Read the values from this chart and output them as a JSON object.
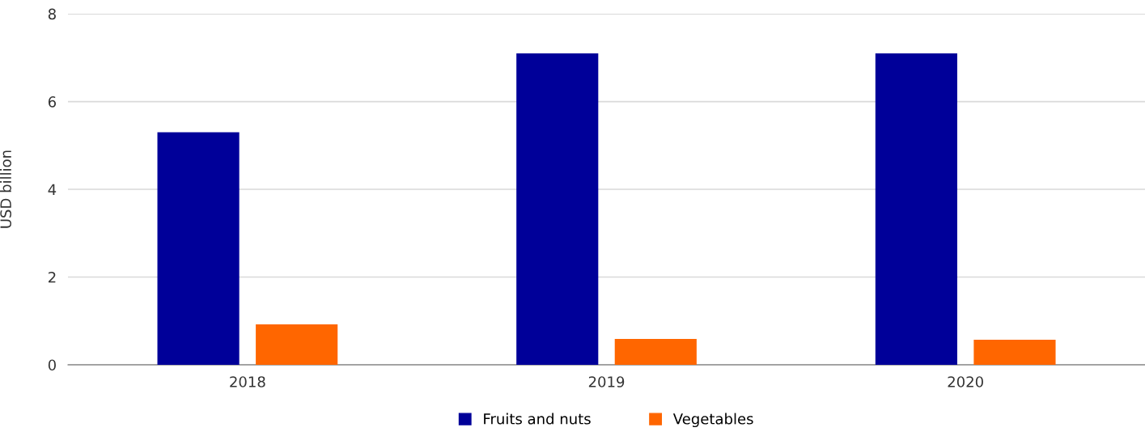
{
  "chart_data": {
    "type": "bar",
    "ylabel": "USD billion",
    "categories": [
      "2018",
      "2019",
      "2020"
    ],
    "series": [
      {
        "name": "Fruits and nuts",
        "color": "#000099",
        "values": [
          5.3,
          7.1,
          7.1
        ]
      },
      {
        "name": "Vegetables",
        "color": "#ff6600",
        "values": [
          0.92,
          0.59,
          0.57
        ]
      }
    ],
    "ylim": [
      0,
      8
    ],
    "yticks": [
      0,
      2,
      4,
      6,
      8
    ],
    "grid": "y",
    "legend": "bottom"
  }
}
